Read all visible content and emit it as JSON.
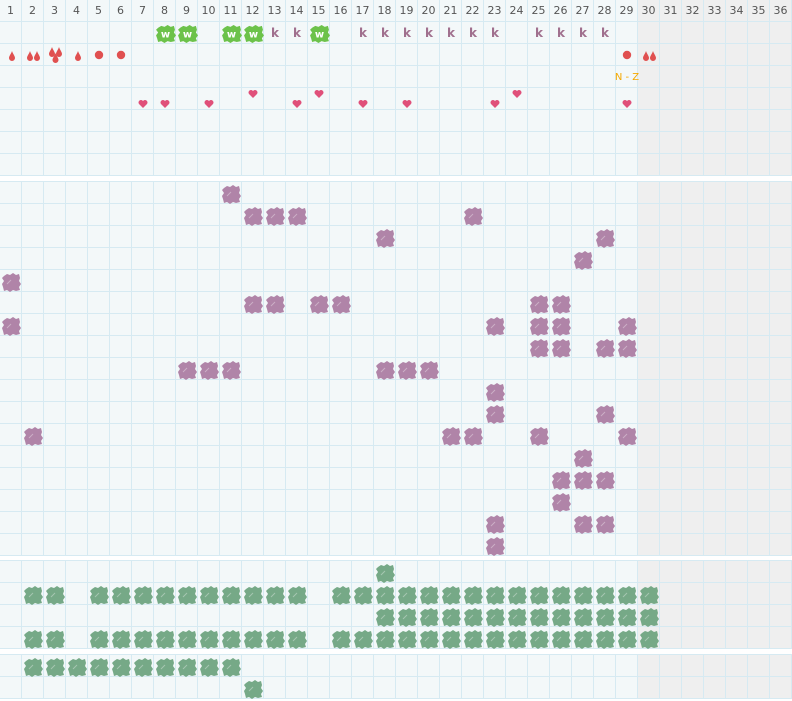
{
  "columns": [
    "1",
    "2",
    "3",
    "4",
    "5",
    "6",
    "7",
    "8",
    "9",
    "10",
    "11",
    "12",
    "13",
    "14",
    "15",
    "16",
    "17",
    "18",
    "19",
    "20",
    "21",
    "22",
    "23",
    "24",
    "25",
    "26",
    "27",
    "28",
    "29",
    "30",
    "31",
    "32",
    "33",
    "34",
    "35",
    "36"
  ],
  "inactive_from_column": 30,
  "colors": {
    "grid_line": "#d6eaf2",
    "cell_bg": "#f3f8f9",
    "inactive_bg": "#efefef",
    "w_badge": "#6cc24a",
    "k_letter": "#a0708e",
    "drop": "#e05050",
    "heart": "#e0507a",
    "range_text": "#f5a800",
    "purple_blob": "#b084a8",
    "green_blob": "#76a987"
  },
  "sections": [
    {
      "name": "section-markers",
      "rows": 7,
      "marks": [
        {
          "row": 0,
          "type": "w-badge",
          "text": "w",
          "cols": [
            8,
            9,
            11,
            12,
            15
          ]
        },
        {
          "row": 0,
          "type": "k-letter",
          "text": "k",
          "cols": [
            13,
            14,
            17,
            18,
            19,
            20,
            21,
            22,
            23,
            25,
            26,
            27,
            28
          ]
        },
        {
          "row": 1,
          "type": "drop-1",
          "cols": [
            1,
            4
          ]
        },
        {
          "row": 1,
          "type": "drop-2",
          "cols": [
            2,
            30
          ]
        },
        {
          "row": 1,
          "type": "drop-3",
          "cols": [
            3
          ]
        },
        {
          "row": 1,
          "type": "dot",
          "cols": [
            5,
            6,
            29
          ]
        },
        {
          "row": 2,
          "type": "range-text",
          "text": "N - Z",
          "cols": [
            29
          ]
        },
        {
          "row": 3,
          "type": "heart-high",
          "cols": [
            12,
            15,
            24
          ]
        },
        {
          "row": 3,
          "type": "heart-low",
          "cols": [
            7,
            8,
            10,
            14,
            17,
            19,
            23,
            29
          ]
        }
      ]
    },
    {
      "name": "section-purple",
      "rows": 17,
      "blob": "purple",
      "grid": [
        [
          11
        ],
        [
          12,
          13,
          14,
          22
        ],
        [
          18,
          28
        ],
        [
          27
        ],
        [
          1
        ],
        [
          12,
          13,
          15,
          16,
          25,
          26
        ],
        [
          1,
          23,
          25,
          26,
          29
        ],
        [
          25,
          26,
          28,
          29
        ],
        [
          9,
          10,
          11,
          18,
          19,
          20
        ],
        [
          23
        ],
        [
          23,
          28
        ],
        [
          2,
          21,
          22,
          25,
          29
        ],
        [
          27
        ],
        [
          26,
          27,
          28
        ],
        [
          26
        ],
        [
          23,
          27,
          28
        ],
        [
          23
        ]
      ]
    },
    {
      "name": "section-green",
      "rows": 4,
      "blob": "green",
      "grid": [
        [
          18
        ],
        [
          2,
          3,
          5,
          6,
          7,
          8,
          9,
          10,
          11,
          12,
          13,
          14,
          16,
          17,
          18,
          19,
          20,
          21,
          22,
          23,
          24,
          25,
          26,
          27,
          28,
          29,
          30
        ],
        [
          18,
          19,
          20,
          21,
          22,
          23,
          24,
          25,
          26,
          27,
          28,
          29,
          30
        ],
        [
          2,
          3,
          5,
          6,
          7,
          8,
          9,
          10,
          11,
          12,
          13,
          14,
          16,
          17,
          18,
          19,
          20,
          21,
          22,
          23,
          24,
          25,
          26,
          27,
          28,
          29,
          30
        ]
      ]
    },
    {
      "name": "section-green-2",
      "rows": 2,
      "blob": "green",
      "grid": [
        [
          2,
          3,
          4,
          5,
          6,
          7,
          8,
          9,
          10,
          11
        ],
        [
          12
        ]
      ]
    }
  ]
}
